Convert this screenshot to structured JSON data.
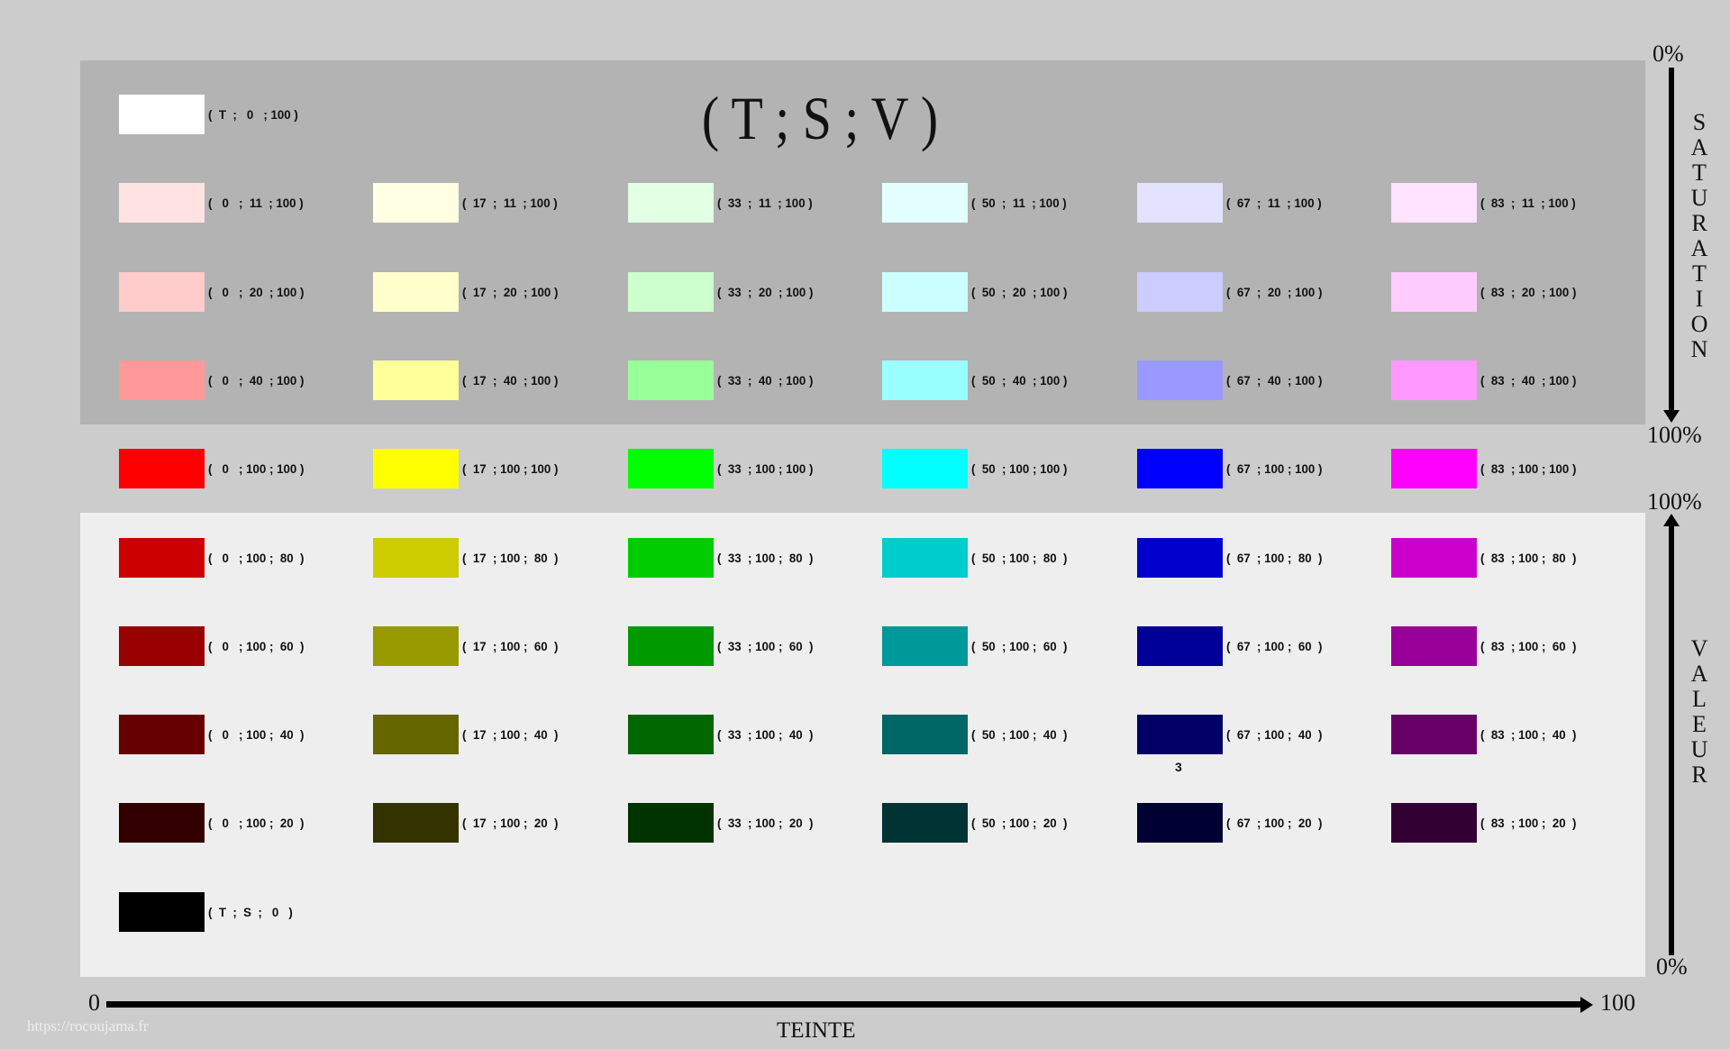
{
  "title": "( T ; S ; V )",
  "saturation_axis": {
    "label": "SATURATION",
    "start": "0%",
    "end": "100%"
  },
  "value_axis": {
    "label": "VALEUR",
    "start": "0%",
    "end": "100%"
  },
  "hue_axis": {
    "label": "TEINTE",
    "start": "0",
    "end": "100"
  },
  "watermark": "https://rocoujama.fr",
  "stray_text": "3",
  "rows": [
    [
      {
        "label": "(  T  ;   0   ; 100 )",
        "color": "#ffffff"
      }
    ],
    [
      {
        "label": "(   0   ;  11  ; 100 )",
        "color": "#ffe3e3"
      },
      {
        "label": "(  17  ;  11  ; 100 )",
        "color": "#ffffe3"
      },
      {
        "label": "(  33  ;  11  ; 100 )",
        "color": "#e3ffe3"
      },
      {
        "label": "(  50  ;  11  ; 100 )",
        "color": "#e3ffff"
      },
      {
        "label": "(  67  ;  11  ; 100 )",
        "color": "#e3e3ff"
      },
      {
        "label": "(  83  ;  11  ; 100 )",
        "color": "#ffe3ff"
      }
    ],
    [
      {
        "label": "(   0   ;  20  ; 100 )",
        "color": "#ffcccc"
      },
      {
        "label": "(  17  ;  20  ; 100 )",
        "color": "#ffffcc"
      },
      {
        "label": "(  33  ;  20  ; 100 )",
        "color": "#ccffcc"
      },
      {
        "label": "(  50  ;  20  ; 100 )",
        "color": "#ccffff"
      },
      {
        "label": "(  67  ;  20  ; 100 )",
        "color": "#ccccff"
      },
      {
        "label": "(  83  ;  20  ; 100 )",
        "color": "#ffccff"
      }
    ],
    [
      {
        "label": "(   0   ;  40  ; 100 )",
        "color": "#ff9999"
      },
      {
        "label": "(  17  ;  40  ; 100 )",
        "color": "#ffff99"
      },
      {
        "label": "(  33  ;  40  ; 100 )",
        "color": "#99ff99"
      },
      {
        "label": "(  50  ;  40  ; 100 )",
        "color": "#99ffff"
      },
      {
        "label": "(  67  ;  40  ; 100 )",
        "color": "#9999ff"
      },
      {
        "label": "(  83  ;  40  ; 100 )",
        "color": "#ff99ff"
      }
    ],
    [
      {
        "label": "(   0   ; 100 ; 100 )",
        "color": "#ff0000"
      },
      {
        "label": "(  17  ; 100 ; 100 )",
        "color": "#ffff00"
      },
      {
        "label": "(  33  ; 100 ; 100 )",
        "color": "#00ff00"
      },
      {
        "label": "(  50  ; 100 ; 100 )",
        "color": "#00ffff"
      },
      {
        "label": "(  67  ; 100 ; 100 )",
        "color": "#0000ff"
      },
      {
        "label": "(  83  ; 100 ; 100 )",
        "color": "#ff00ff"
      }
    ],
    [
      {
        "label": "(   0   ; 100 ;  80  )",
        "color": "#cc0000"
      },
      {
        "label": "(  17  ; 100 ;  80  )",
        "color": "#cccc00"
      },
      {
        "label": "(  33  ; 100 ;  80  )",
        "color": "#00cc00"
      },
      {
        "label": "(  50  ; 100 ;  80  )",
        "color": "#00cccc"
      },
      {
        "label": "(  67  ; 100 ;  80  )",
        "color": "#0000cc"
      },
      {
        "label": "(  83  ; 100 ;  80  )",
        "color": "#cc00cc"
      }
    ],
    [
      {
        "label": "(   0   ; 100 ;  60  )",
        "color": "#990000"
      },
      {
        "label": "(  17  ; 100 ;  60  )",
        "color": "#999900"
      },
      {
        "label": "(  33  ; 100 ;  60  )",
        "color": "#009900"
      },
      {
        "label": "(  50  ; 100 ;  60  )",
        "color": "#009999"
      },
      {
        "label": "(  67  ; 100 ;  60  )",
        "color": "#000099"
      },
      {
        "label": "(  83  ; 100 ;  60  )",
        "color": "#990099"
      }
    ],
    [
      {
        "label": "(   0   ; 100 ;  40  )",
        "color": "#660000"
      },
      {
        "label": "(  17  ; 100 ;  40  )",
        "color": "#666600"
      },
      {
        "label": "(  33  ; 100 ;  40  )",
        "color": "#006600"
      },
      {
        "label": "(  50  ; 100 ;  40  )",
        "color": "#006666"
      },
      {
        "label": "(  67  ; 100 ;  40  )",
        "color": "#000066"
      },
      {
        "label": "(  83  ; 100 ;  40  )",
        "color": "#660066"
      }
    ],
    [
      {
        "label": "(   0   ; 100 ;  20  )",
        "color": "#330000"
      },
      {
        "label": "(  17  ; 100 ;  20  )",
        "color": "#333300"
      },
      {
        "label": "(  33  ; 100 ;  20  )",
        "color": "#003300"
      },
      {
        "label": "(  50  ; 100 ;  20  )",
        "color": "#003333"
      },
      {
        "label": "(  67  ; 100 ;  20  )",
        "color": "#000033"
      },
      {
        "label": "(  83  ; 100 ;  20  )",
        "color": "#330033"
      }
    ],
    [
      {
        "label": "(  T  ;  S  ;   0   )",
        "color": "#000000"
      }
    ]
  ]
}
